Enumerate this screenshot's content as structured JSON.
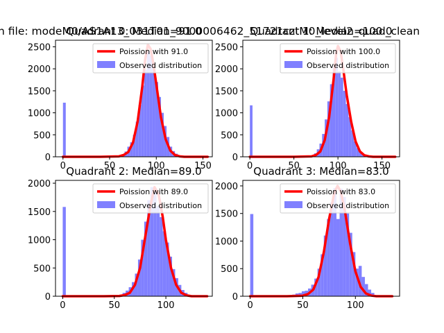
{
  "figure": {
    "suptitle": "n file: modeM0/AS1A13_031T01_9000006462_51721cztM0_level2_quad_clean"
  },
  "colors": {
    "poisson": "#ff0000",
    "observed": "#8080ff",
    "axis": "#000000",
    "background": "#ffffff"
  },
  "chart_data": [
    {
      "type": "bar",
      "title": "Quadrant 0: Median=91.0",
      "xlim": [
        -8,
        160
      ],
      "ylim": [
        0,
        2650
      ],
      "xticks": [
        0,
        50,
        100,
        150
      ],
      "yticks": [
        0,
        500,
        1000,
        1500,
        2000,
        2500
      ],
      "legend_placement": "upper right",
      "series": [
        {
          "name": "Poission with 91.0",
          "type": "line",
          "x": [
            0,
            40,
            60,
            65,
            70,
            75,
            80,
            85,
            88,
            91,
            94,
            97,
            100,
            105,
            110,
            115,
            120,
            125,
            130,
            155
          ],
          "y": [
            0,
            0,
            10,
            40,
            110,
            320,
            800,
            1600,
            2200,
            2550,
            2450,
            2100,
            1650,
            900,
            400,
            140,
            40,
            10,
            0,
            0
          ]
        },
        {
          "name": "Observed distribution",
          "type": "hist",
          "bin_width": 3,
          "x": [
            0,
            45,
            50,
            55,
            60,
            63,
            66,
            69,
            72,
            75,
            78,
            81,
            84,
            87,
            90,
            93,
            96,
            99,
            102,
            105,
            108,
            111,
            114,
            117,
            120,
            123,
            126,
            130,
            140,
            150
          ],
          "y": [
            1230,
            2,
            5,
            15,
            40,
            60,
            120,
            230,
            330,
            500,
            800,
            1180,
            1620,
            1980,
            2400,
            2300,
            2000,
            1700,
            1360,
            1000,
            700,
            450,
            230,
            130,
            70,
            30,
            12,
            6,
            2,
            1
          ]
        }
      ]
    },
    {
      "type": "bar",
      "title": "Quadrant 1: Median=100.0",
      "xlim": [
        -8,
        170
      ],
      "ylim": [
        0,
        2650
      ],
      "xticks": [
        0,
        50,
        100,
        150
      ],
      "yticks": [
        0,
        500,
        1000,
        1500,
        2000,
        2500
      ],
      "legend_placement": "upper right",
      "series": [
        {
          "name": "Poission with 100.0",
          "type": "line",
          "x": [
            0,
            50,
            70,
            75,
            80,
            85,
            90,
            95,
            98,
            100,
            103,
            106,
            110,
            115,
            120,
            125,
            130,
            135,
            140,
            165
          ],
          "y": [
            0,
            0,
            10,
            40,
            120,
            380,
            900,
            1750,
            2350,
            2520,
            2400,
            2000,
            1400,
            800,
            350,
            120,
            35,
            10,
            0,
            0
          ]
        },
        {
          "name": "Observed distribution",
          "type": "hist",
          "bin_width": 3,
          "x": [
            0,
            50,
            55,
            60,
            65,
            70,
            73,
            76,
            79,
            82,
            85,
            88,
            91,
            94,
            97,
            100,
            103,
            106,
            109,
            112,
            115,
            118,
            121,
            124,
            127,
            130,
            135,
            140,
            150,
            160
          ],
          "y": [
            1170,
            2,
            5,
            12,
            20,
            40,
            80,
            170,
            300,
            520,
            850,
            1260,
            1650,
            2050,
            2250,
            1950,
            1800,
            1500,
            1200,
            900,
            600,
            350,
            200,
            100,
            50,
            25,
            10,
            5,
            2,
            1
          ]
        }
      ]
    },
    {
      "type": "bar",
      "title": "Quadrant 2: Median=89.0",
      "xlim": [
        -7,
        145
      ],
      "ylim": [
        0,
        2050
      ],
      "xticks": [
        0,
        50,
        100
      ],
      "yticks": [
        0,
        500,
        1000,
        1500,
        2000
      ],
      "legend_placement": "upper right",
      "series": [
        {
          "name": "Poission with 89.0",
          "type": "line",
          "x": [
            0,
            40,
            55,
            60,
            65,
            70,
            75,
            80,
            85,
            89,
            93,
            97,
            100,
            105,
            110,
            115,
            120,
            125,
            140
          ],
          "y": [
            0,
            0,
            5,
            20,
            60,
            200,
            500,
            1050,
            1600,
            1930,
            1800,
            1400,
            1000,
            500,
            200,
            60,
            15,
            0,
            0
          ]
        },
        {
          "name": "Observed distribution",
          "type": "hist",
          "bin_width": 3,
          "x": [
            0,
            45,
            50,
            55,
            58,
            61,
            64,
            67,
            70,
            73,
            76,
            79,
            82,
            85,
            88,
            91,
            94,
            97,
            100,
            103,
            106,
            109,
            112,
            115,
            118,
            121,
            125,
            130
          ],
          "y": [
            1580,
            5,
            15,
            30,
            60,
            100,
            160,
            250,
            400,
            650,
            1000,
            1320,
            1700,
            1930,
            1920,
            1600,
            1400,
            1150,
            950,
            700,
            480,
            320,
            200,
            110,
            60,
            25,
            10,
            3
          ]
        }
      ]
    },
    {
      "type": "bar",
      "title": "Quadrant 3: Median=83.0",
      "xlim": [
        -7,
        142
      ],
      "ylim": [
        0,
        2100
      ],
      "xticks": [
        0,
        50,
        100
      ],
      "yticks": [
        0,
        500,
        1000,
        1500,
        2000
      ],
      "legend_placement": "upper right",
      "series": [
        {
          "name": "Poission with 83.0",
          "type": "line",
          "x": [
            0,
            35,
            50,
            55,
            60,
            65,
            70,
            75,
            80,
            83,
            86,
            90,
            95,
            100,
            105,
            110,
            115,
            120,
            135
          ],
          "y": [
            0,
            0,
            10,
            40,
            120,
            350,
            800,
            1400,
            1880,
            2000,
            1900,
            1550,
            950,
            450,
            170,
            50,
            12,
            0,
            0
          ]
        },
        {
          "name": "Observed distribution",
          "type": "hist",
          "bin_width": 3,
          "x": [
            0,
            40,
            43,
            46,
            49,
            52,
            55,
            58,
            61,
            64,
            67,
            70,
            73,
            76,
            79,
            82,
            85,
            88,
            91,
            94,
            97,
            100,
            103,
            106,
            109,
            112,
            115,
            120,
            125
          ],
          "y": [
            1490,
            30,
            50,
            60,
            90,
            100,
            140,
            210,
            320,
            500,
            760,
            1100,
            1400,
            1700,
            1960,
            1400,
            1950,
            1800,
            1500,
            1150,
            800,
            500,
            550,
            350,
            220,
            120,
            60,
            20,
            5
          ]
        }
      ]
    }
  ]
}
